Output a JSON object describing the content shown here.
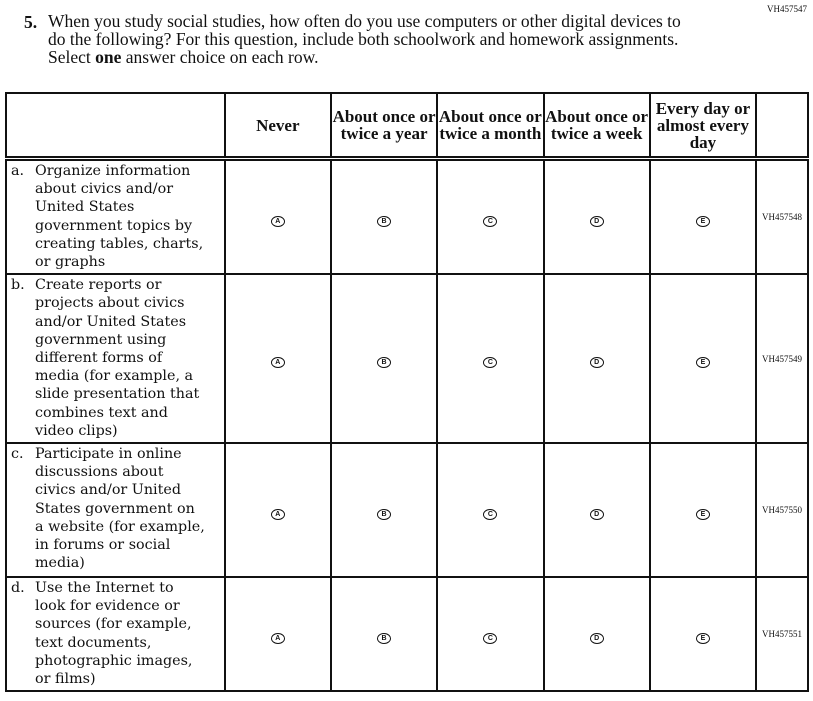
{
  "question": {
    "id": "VH457547",
    "number": "5.",
    "text_before": "When you study social studies, how often do you use computers or other digital devices to do the following? For this question, include both schoolwork and homework assignments. Select ",
    "text_emphasis": "one",
    "text_after": " answer choice on each row."
  },
  "columns": [
    "Never",
    "About once or twice a year",
    "About once or twice a month",
    "About once or twice a week",
    "Every day or almost every day"
  ],
  "bubble_letters": [
    "A",
    "B",
    "C",
    "D",
    "E"
  ],
  "rows": [
    {
      "letter": "a.",
      "text": "Organize information\nabout civics and/or\nUnited States\ngovernment topics by\ncreating tables, charts,\nor graphs",
      "id": "VH457548"
    },
    {
      "letter": "b.",
      "text": "Create reports or\nprojects about civics\nand/or United States\ngovernment using\ndifferent forms of\nmedia (for example, a\nslide presentation that\ncombines text and\nvideo clips)",
      "id": "VH457549"
    },
    {
      "letter": "c.",
      "text": "Participate in online\ndiscussions about\ncivics and/or United\nStates government on\na website (for example,\nin forums or social\nmedia)",
      "id": "VH457550"
    },
    {
      "letter": "d.",
      "text": "Use the Internet to\nlook for evidence or\nsources (for example,\ntext documents,\nphotographic images,\nor films)",
      "id": "VH457551"
    }
  ]
}
